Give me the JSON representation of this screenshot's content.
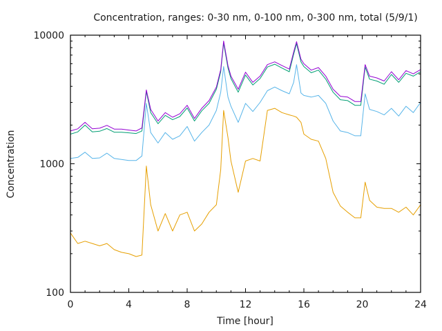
{
  "chart_data": {
    "type": "line",
    "title": "Concentration, ranges: 0-30 nm, 0-100 nm, 0-300 nm, total (5/9/1)",
    "xlabel": "Time [hour]",
    "ylabel": "Concentration",
    "xlim": [
      0,
      24
    ],
    "ylim": [
      100,
      10000
    ],
    "yscale": "log",
    "grid": false,
    "x_ticks": [
      0,
      4,
      8,
      12,
      16,
      20,
      24
    ],
    "x_tick_labels": [
      "0",
      "4",
      "8",
      "12",
      "16",
      "20",
      "24"
    ],
    "y_ticks": [
      100,
      1000,
      10000
    ],
    "y_tick_labels": [
      "100",
      "1000",
      "10000"
    ],
    "x": [
      0,
      0.5,
      1,
      1.5,
      2,
      2.5,
      3,
      3.5,
      4,
      4.5,
      4.9,
      5.2,
      5.5,
      6,
      6.5,
      7,
      7.5,
      8,
      8.5,
      9,
      9.5,
      10,
      10.3,
      10.5,
      10.8,
      11,
      11.5,
      12,
      12.5,
      13,
      13.5,
      14,
      14.5,
      15,
      15.3,
      15.5,
      15.8,
      16,
      16.5,
      17,
      17.5,
      18,
      18.5,
      19,
      19.5,
      19.9,
      20.2,
      20.5,
      21,
      21.5,
      22,
      22.5,
      23,
      23.5,
      24
    ],
    "series": [
      {
        "name": "total",
        "color": "#9400d3",
        "values": [
          1800,
          1870,
          2100,
          1870,
          1890,
          1990,
          1860,
          1860,
          1830,
          1800,
          1900,
          3750,
          2650,
          2150,
          2500,
          2300,
          2450,
          2850,
          2250,
          2700,
          3100,
          3950,
          5400,
          9000,
          5800,
          4800,
          3800,
          5150,
          4300,
          4800,
          5900,
          6200,
          5800,
          5450,
          7400,
          8900,
          6500,
          6000,
          5350,
          5600,
          4800,
          3800,
          3350,
          3300,
          3050,
          3050,
          5900,
          4800,
          4650,
          4400,
          5200,
          4500,
          5300,
          5000,
          5400
        ]
      },
      {
        "name": "0-300 nm",
        "color": "#009e73",
        "values": [
          1700,
          1770,
          2000,
          1770,
          1790,
          1880,
          1760,
          1760,
          1740,
          1720,
          1800,
          3650,
          2500,
          2050,
          2380,
          2200,
          2330,
          2720,
          2150,
          2580,
          2950,
          3800,
          5200,
          8700,
          5550,
          4600,
          3600,
          4900,
          4100,
          4600,
          5650,
          5950,
          5550,
          5200,
          7100,
          8600,
          6200,
          5700,
          5100,
          5350,
          4550,
          3600,
          3150,
          3100,
          2850,
          2850,
          5650,
          4550,
          4400,
          4150,
          4950,
          4300,
          5050,
          4800,
          5200
        ]
      },
      {
        "name": "0-100 nm",
        "color": "#56b4e9",
        "values": [
          1100,
          1120,
          1230,
          1100,
          1110,
          1210,
          1100,
          1080,
          1060,
          1060,
          1150,
          2950,
          1750,
          1450,
          1750,
          1550,
          1650,
          1950,
          1500,
          1750,
          2000,
          2600,
          3600,
          5700,
          3300,
          2800,
          2100,
          2950,
          2550,
          3000,
          3700,
          3950,
          3700,
          3500,
          4300,
          5900,
          3550,
          3400,
          3300,
          3400,
          2950,
          2150,
          1800,
          1750,
          1650,
          1650,
          3500,
          2650,
          2550,
          2400,
          2700,
          2350,
          2800,
          2500,
          3000
        ]
      },
      {
        "name": "0-30 nm",
        "color": "#e69f00",
        "values": [
          290,
          240,
          250,
          240,
          230,
          240,
          215,
          205,
          200,
          190,
          195,
          960,
          480,
          300,
          410,
          300,
          400,
          420,
          300,
          340,
          420,
          480,
          900,
          2600,
          1600,
          1050,
          600,
          1050,
          1100,
          1050,
          2600,
          2700,
          2500,
          2400,
          2350,
          2300,
          2100,
          1700,
          1550,
          1500,
          1100,
          600,
          470,
          420,
          380,
          380,
          720,
          520,
          460,
          450,
          450,
          420,
          460,
          400,
          480
        ]
      }
    ]
  }
}
